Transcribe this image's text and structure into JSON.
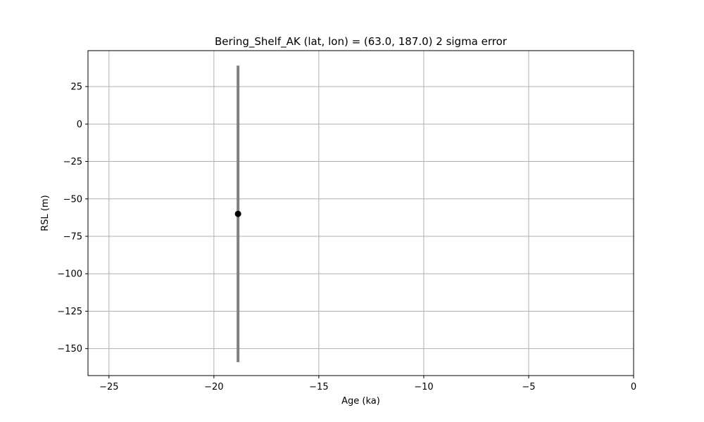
{
  "chart_data": {
    "type": "scatter",
    "title": "Bering_Shelf_AK (lat, lon) = (63.0, 187.0)  2 sigma error",
    "xlabel": "Age (ka)",
    "ylabel": "RSL (m)",
    "xlim": [
      -26,
      0
    ],
    "ylim": [
      -168,
      49
    ],
    "xticks": [
      -25,
      -20,
      -15,
      -10,
      -5,
      0
    ],
    "yticks": [
      25,
      0,
      -25,
      -50,
      -75,
      -100,
      -125,
      -150
    ],
    "xtick_labels": [
      "−25",
      "−20",
      "−15",
      "−10",
      "−5",
      "0"
    ],
    "ytick_labels": [
      "25",
      "0",
      "−25",
      "−50",
      "−75",
      "−100",
      "−125",
      "−150"
    ],
    "grid": true,
    "points": [
      {
        "x": -18.85,
        "y": -60,
        "y_low": -159,
        "y_high": 39
      }
    ],
    "colors": {
      "point": "#000000",
      "errorbar": "#808080",
      "grid": "#b0b0b0",
      "axes": "#000000"
    }
  }
}
